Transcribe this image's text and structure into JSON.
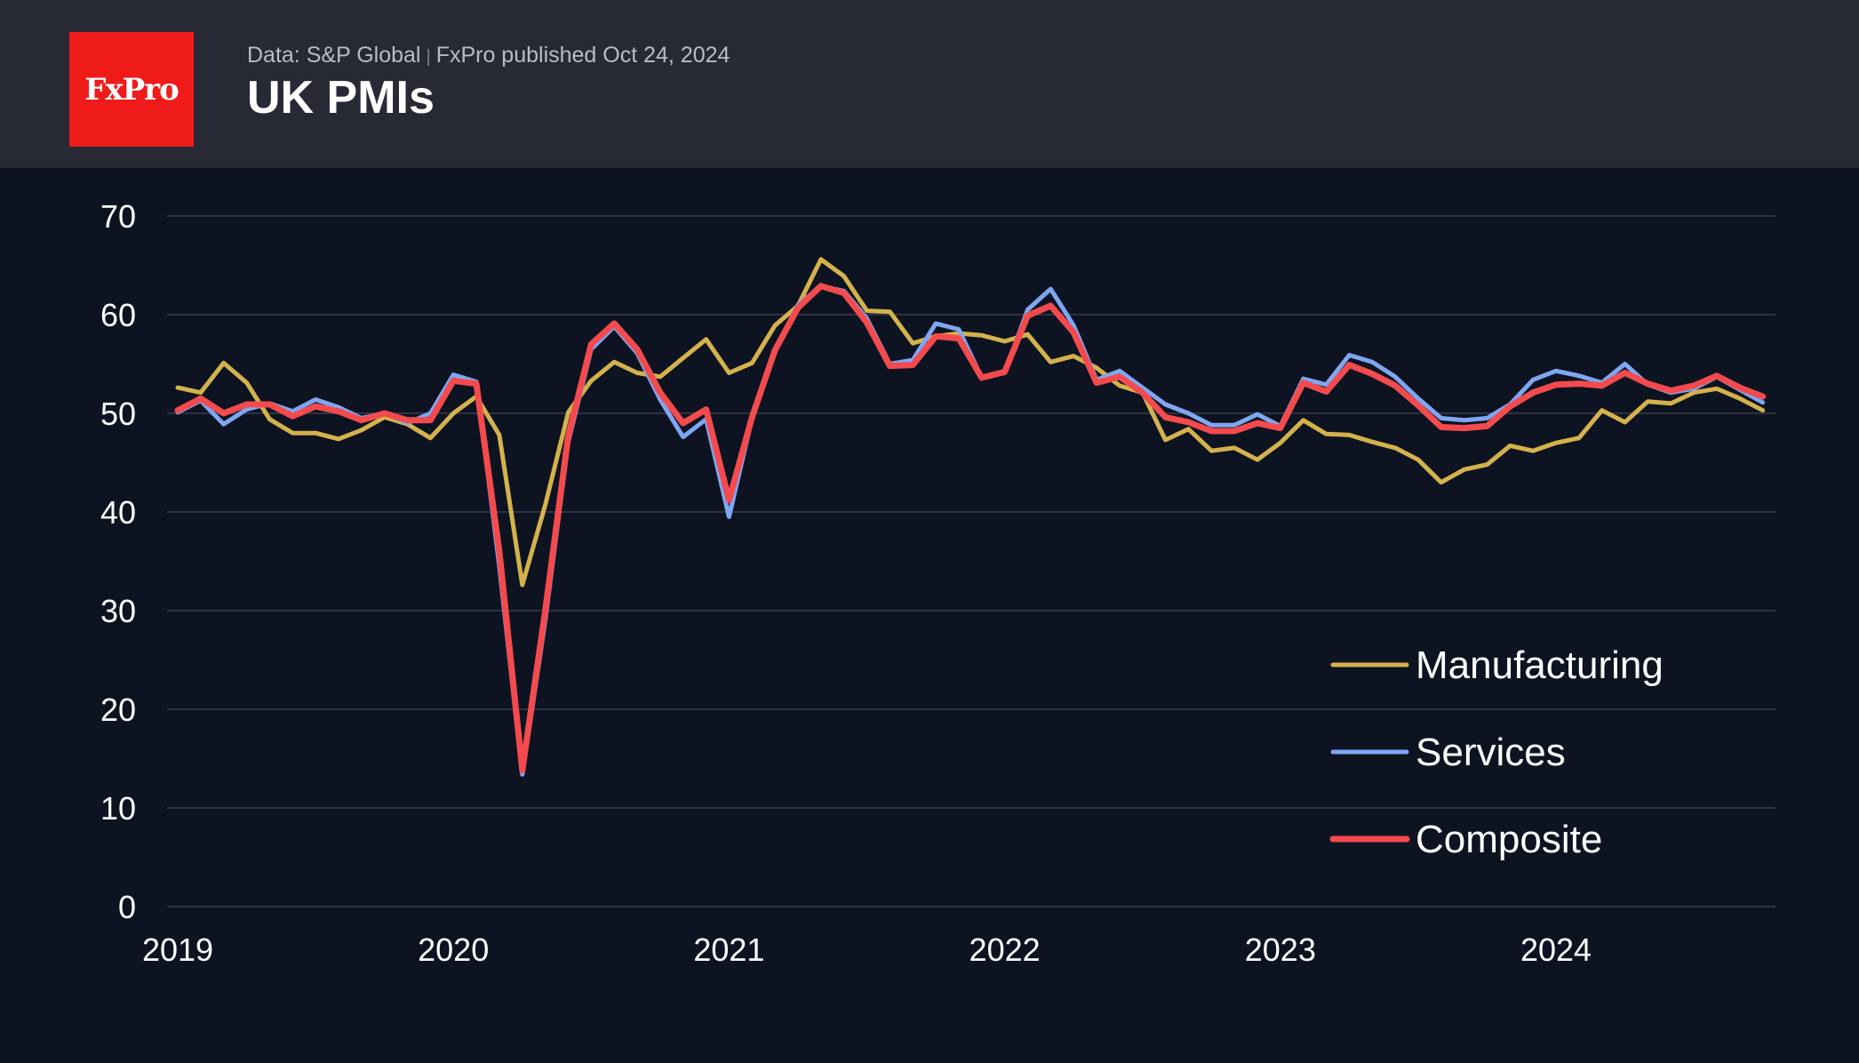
{
  "header": {
    "logo_text": "FxPro",
    "source": "Data: S&P Global",
    "separator": "|",
    "published": "FxPro published Oct 24, 2024",
    "title": "UK PMIs"
  },
  "colors": {
    "background": "#0d1320",
    "header": "#272a35",
    "logo": "#ef1b1b",
    "grid": "#2c3240"
  },
  "chart_data": {
    "type": "line",
    "x_start": "2019-01",
    "x_frequency": "monthly",
    "x_ticks": [
      "2019",
      "2020",
      "2021",
      "2022",
      "2023",
      "2024"
    ],
    "y_ticks": [
      0,
      10,
      20,
      30,
      40,
      50,
      60,
      70
    ],
    "ylim": [
      0,
      70
    ],
    "grid": true,
    "legend_position": "bottom-right",
    "series": [
      {
        "name": "Manufacturing",
        "color": "#d4b24c",
        "values": [
          52.6,
          52.1,
          55.1,
          53.1,
          49.4,
          48.0,
          48.0,
          47.4,
          48.3,
          49.6,
          48.9,
          47.5,
          50.0,
          51.7,
          47.8,
          32.6,
          40.7,
          50.1,
          53.3,
          55.2,
          54.1,
          53.7,
          55.6,
          57.5,
          54.1,
          55.1,
          58.9,
          60.9,
          65.6,
          63.9,
          60.4,
          60.3,
          57.1,
          57.8,
          58.1,
          57.9,
          57.3,
          58.0,
          55.2,
          55.8,
          54.6,
          52.8,
          52.1,
          47.3,
          48.4,
          46.2,
          46.5,
          45.3,
          47.0,
          49.3,
          47.9,
          47.8,
          47.1,
          46.5,
          45.3,
          43.0,
          44.3,
          44.8,
          46.7,
          46.2,
          47.0,
          47.5,
          50.3,
          49.1,
          51.2,
          51.0,
          52.1,
          52.5,
          51.5,
          50.3
        ]
      },
      {
        "name": "Services",
        "color": "#7fa6f2",
        "values": [
          50.1,
          51.3,
          48.9,
          50.4,
          51.0,
          50.2,
          51.4,
          50.6,
          49.5,
          50.0,
          49.0,
          50.0,
          53.9,
          53.2,
          34.5,
          13.4,
          29.0,
          47.1,
          56.5,
          58.8,
          56.1,
          51.4,
          47.6,
          49.4,
          39.5,
          49.5,
          56.3,
          61.0,
          62.9,
          62.4,
          59.6,
          55.0,
          55.4,
          59.1,
          58.5,
          53.6,
          54.1,
          60.5,
          62.6,
          58.9,
          53.4,
          54.3,
          52.6,
          50.9,
          50.0,
          48.8,
          48.8,
          49.9,
          48.7,
          53.5,
          52.9,
          55.9,
          55.2,
          53.7,
          51.5,
          49.5,
          49.3,
          49.5,
          50.9,
          53.4,
          54.3,
          53.8,
          53.1,
          55.0,
          52.9,
          52.1,
          52.5,
          53.7,
          52.4,
          51.1
        ]
      },
      {
        "name": "Composite",
        "color": "#f34a4e",
        "values": [
          50.3,
          51.5,
          50.0,
          50.9,
          50.9,
          49.7,
          50.7,
          50.2,
          49.3,
          50.0,
          49.3,
          49.3,
          53.3,
          53.0,
          36.0,
          13.8,
          30.0,
          47.7,
          57.0,
          59.1,
          56.5,
          52.1,
          49.0,
          50.4,
          41.2,
          49.6,
          56.4,
          60.7,
          62.9,
          62.2,
          59.2,
          54.8,
          54.9,
          57.8,
          57.6,
          53.6,
          54.2,
          59.9,
          60.9,
          58.2,
          53.1,
          53.7,
          52.1,
          49.6,
          49.1,
          48.2,
          48.2,
          49.0,
          48.5,
          53.1,
          52.2,
          54.9,
          54.0,
          52.8,
          50.8,
          48.6,
          48.5,
          48.7,
          50.7,
          52.1,
          52.9,
          53.0,
          52.8,
          54.1,
          53.0,
          52.3,
          52.8,
          53.8,
          52.6,
          51.7
        ]
      }
    ]
  }
}
